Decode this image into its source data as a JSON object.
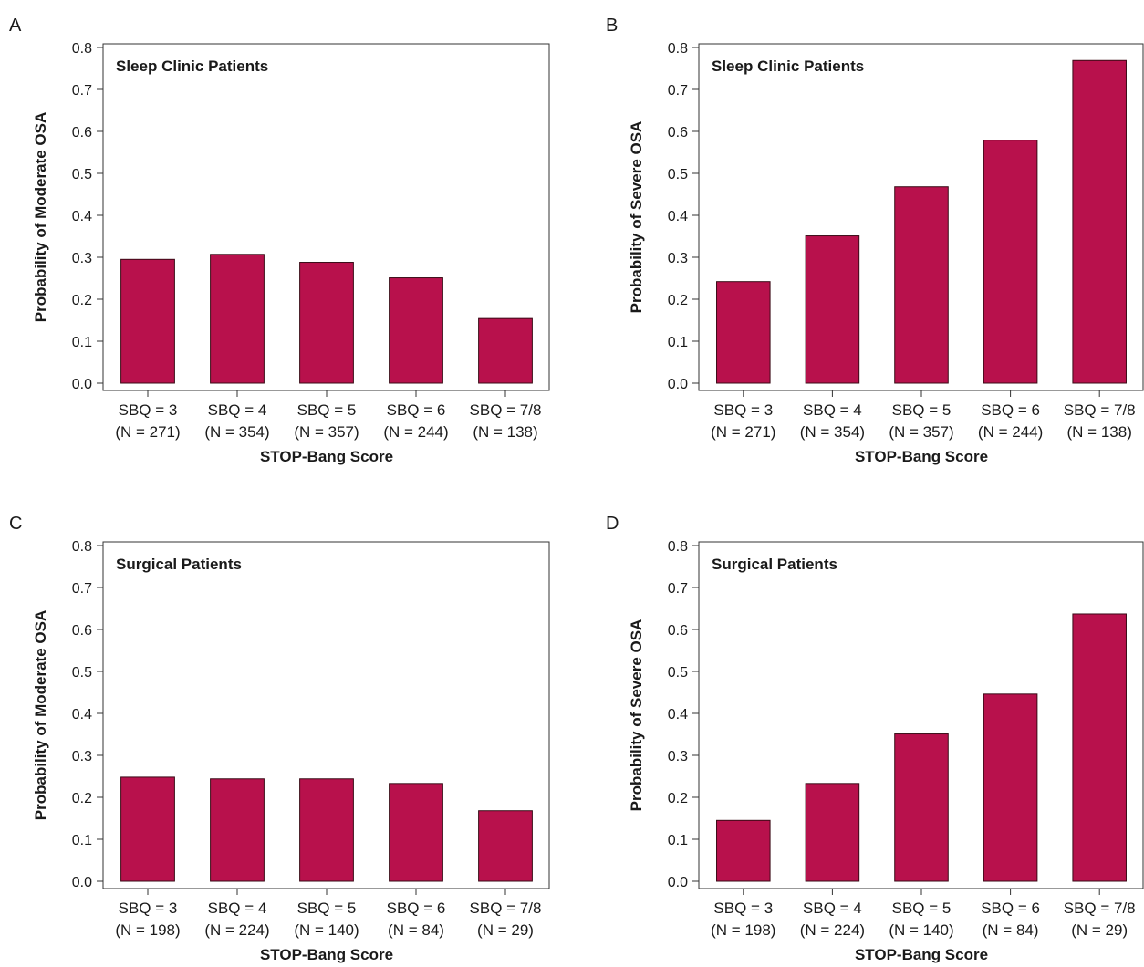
{
  "colors": {
    "bar": "#b8114c",
    "axis": "#333333"
  },
  "chart_data": [
    {
      "panel": "A",
      "type": "bar",
      "inset_title": "Sleep Clinic Patients",
      "xlabel": "STOP-Bang Score",
      "ylabel": "Probability of Moderate OSA",
      "ylim": [
        0,
        0.8
      ],
      "yticks": [
        "0.0",
        "0.1",
        "0.2",
        "0.3",
        "0.4",
        "0.5",
        "0.6",
        "0.7",
        "0.8"
      ],
      "categories": [
        "SBQ = 3",
        "SBQ = 4",
        "SBQ = 5",
        "SBQ = 6",
        "SBQ = 7/8"
      ],
      "n_labels": [
        "(N = 271)",
        "(N = 354)",
        "(N = 357)",
        "(N = 244)",
        "(N = 138)"
      ],
      "values": [
        0.295,
        0.307,
        0.288,
        0.251,
        0.154
      ]
    },
    {
      "panel": "B",
      "type": "bar",
      "inset_title": "Sleep Clinic Patients",
      "xlabel": "STOP-Bang Score",
      "ylabel": "Probability of Severe OSA",
      "ylim": [
        0,
        0.8
      ],
      "yticks": [
        "0.0",
        "0.1",
        "0.2",
        "0.3",
        "0.4",
        "0.5",
        "0.6",
        "0.7",
        "0.8"
      ],
      "categories": [
        "SBQ = 3",
        "SBQ = 4",
        "SBQ = 5",
        "SBQ = 6",
        "SBQ = 7/8"
      ],
      "n_labels": [
        "(N = 271)",
        "(N = 354)",
        "(N = 357)",
        "(N = 244)",
        "(N = 138)"
      ],
      "values": [
        0.242,
        0.351,
        0.468,
        0.579,
        0.769
      ]
    },
    {
      "panel": "C",
      "type": "bar",
      "inset_title": "Surgical Patients",
      "xlabel": "STOP-Bang Score",
      "ylabel": "Probability of Moderate OSA",
      "ylim": [
        0,
        0.8
      ],
      "yticks": [
        "0.0",
        "0.1",
        "0.2",
        "0.3",
        "0.4",
        "0.5",
        "0.6",
        "0.7",
        "0.8"
      ],
      "categories": [
        "SBQ = 3",
        "SBQ = 4",
        "SBQ = 5",
        "SBQ = 6",
        "SBQ = 7/8"
      ],
      "n_labels": [
        "(N = 198)",
        "(N = 224)",
        "(N = 140)",
        "(N = 84)",
        "(N = 29)"
      ],
      "values": [
        0.248,
        0.244,
        0.244,
        0.233,
        0.168
      ]
    },
    {
      "panel": "D",
      "type": "bar",
      "inset_title": "Surgical Patients",
      "xlabel": "STOP-Bang Score",
      "ylabel": "Probability of Severe OSA",
      "ylim": [
        0,
        0.8
      ],
      "yticks": [
        "0.0",
        "0.1",
        "0.2",
        "0.3",
        "0.4",
        "0.5",
        "0.6",
        "0.7",
        "0.8"
      ],
      "categories": [
        "SBQ = 3",
        "SBQ = 4",
        "SBQ = 5",
        "SBQ = 6",
        "SBQ = 7/8"
      ],
      "n_labels": [
        "(N = 198)",
        "(N = 224)",
        "(N = 140)",
        "(N = 84)",
        "(N = 29)"
      ],
      "values": [
        0.145,
        0.233,
        0.351,
        0.446,
        0.637
      ]
    }
  ]
}
